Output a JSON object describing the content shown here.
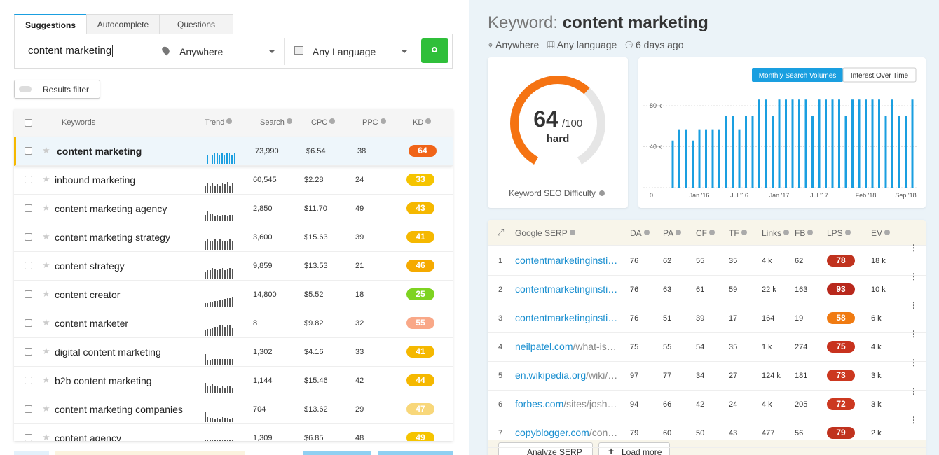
{
  "tabs": [
    "Suggestions",
    "Autocomplete",
    "Questions"
  ],
  "search": {
    "query": "content marketing",
    "location": "Anywhere",
    "language": "Any Language"
  },
  "results_filter": "Results filter",
  "keywords": {
    "headers": [
      "Keywords",
      "Trend",
      "Search",
      "CPC",
      "PPC",
      "KD"
    ],
    "rows": [
      {
        "keyword": "content marketing",
        "search": "73,990",
        "cpc": "$6.54",
        "ppc": "38",
        "kd": "64",
        "kd_color": "#f06418",
        "trend": [
          9,
          10,
          9,
          10,
          10,
          9,
          10,
          9,
          10,
          10,
          9,
          10
        ]
      },
      {
        "keyword": "inbound marketing",
        "search": "60,545",
        "cpc": "$2.28",
        "ppc": "24",
        "kd": "33",
        "kd_color": "#f5c400",
        "trend": [
          7,
          9,
          6,
          9,
          7,
          8,
          6,
          9,
          8,
          10,
          7,
          9
        ]
      },
      {
        "keyword": "content marketing agency",
        "search": "2,850",
        "cpc": "$11.70",
        "ppc": "49",
        "kd": "43",
        "kd_color": "#f5b800",
        "trend": [
          6,
          10,
          7,
          7,
          5,
          6,
          5,
          6,
          6,
          5,
          6,
          6
        ]
      },
      {
        "keyword": "content marketing strategy",
        "search": "3,600",
        "cpc": "$15.63",
        "ppc": "39",
        "kd": "41",
        "kd_color": "#f5b800",
        "trend": [
          8,
          9,
          8,
          8,
          9,
          8,
          9,
          8,
          8,
          8,
          9,
          8
        ]
      },
      {
        "keyword": "content strategy",
        "search": "9,859",
        "cpc": "$13.53",
        "ppc": "21",
        "kd": "46",
        "kd_color": "#f5aa00",
        "trend": [
          7,
          8,
          8,
          10,
          9,
          8,
          9,
          10,
          8,
          9,
          10,
          9
        ]
      },
      {
        "keyword": "content creator",
        "search": "14,800",
        "cpc": "$5.52",
        "ppc": "18",
        "kd": "25",
        "kd_color": "#7ed321",
        "trend": [
          4,
          4,
          5,
          5,
          6,
          6,
          7,
          7,
          8,
          9,
          9,
          10
        ]
      },
      {
        "keyword": "content marketer",
        "search": "8",
        "cpc": "$9.82",
        "ppc": "32",
        "kd": "55",
        "kd_color": "#f9a888",
        "trend": [
          5,
          6,
          6,
          7,
          8,
          8,
          9,
          9,
          8,
          9,
          9,
          7
        ]
      },
      {
        "keyword": "digital content marketing",
        "search": "1,302",
        "cpc": "$4.16",
        "ppc": "33",
        "kd": "41",
        "kd_color": "#f5b800",
        "trend": [
          9,
          4,
          4,
          5,
          5,
          5,
          5,
          5,
          5,
          5,
          5,
          5
        ]
      },
      {
        "keyword": "b2b content marketing",
        "search": "1,144",
        "cpc": "$15.46",
        "ppc": "42",
        "kd": "44",
        "kd_color": "#f5b800",
        "trend": [
          9,
          6,
          6,
          8,
          6,
          6,
          5,
          6,
          5,
          6,
          6,
          5
        ]
      },
      {
        "keyword": "content marketing companies",
        "search": "704",
        "cpc": "$13.62",
        "ppc": "29",
        "kd": "47",
        "kd_color": "#f8d77a",
        "trend": [
          10,
          5,
          4,
          4,
          3,
          4,
          3,
          5,
          4,
          4,
          3,
          4
        ]
      },
      {
        "keyword": "content agency",
        "search": "1,309",
        "cpc": "$6.85",
        "ppc": "48",
        "kd": "49",
        "kd_color": "#f5c400",
        "trend": [
          7,
          7,
          7,
          7,
          7,
          7,
          7,
          7,
          7,
          7,
          7,
          7
        ]
      }
    ]
  },
  "keyword_title": {
    "prefix": "Keyword:",
    "keyword": "content marketing"
  },
  "meta": {
    "location": "Anywhere",
    "language": "Any language",
    "updated": "6 days ago"
  },
  "difficulty": {
    "value": 64,
    "max": "/100",
    "label": "hard",
    "caption": "Keyword SEO Difficulty"
  },
  "volume_chart": {
    "tabs": [
      "Monthly Search Volumes",
      "Interest Over Time"
    ],
    "ylim": [
      0,
      90000
    ],
    "yticks": [
      {
        "value": 0,
        "label": "0"
      },
      {
        "value": 40000,
        "label": "40 k"
      },
      {
        "value": 80000,
        "label": "80 k"
      }
    ],
    "categories": [
      null,
      null,
      null,
      null,
      "Jan '16",
      null,
      null,
      null,
      null,
      null,
      "Jul '16",
      null,
      null,
      null,
      null,
      null,
      "Jan '17",
      null,
      null,
      null,
      null,
      null,
      "Jul '17",
      null,
      null,
      null,
      null,
      null,
      null,
      "Feb '18",
      null,
      null,
      null,
      null,
      null,
      "Sep '18",
      null
    ],
    "values": [
      46000,
      57000,
      57000,
      46000,
      57000,
      57000,
      57000,
      57000,
      70000,
      70000,
      57000,
      70000,
      70000,
      86000,
      86000,
      70000,
      86000,
      86000,
      86000,
      86000,
      86000,
      70000,
      86000,
      86000,
      86000,
      86000,
      70000,
      86000,
      86000,
      86000,
      86000,
      86000,
      70000,
      86000,
      70000,
      70000,
      86000
    ],
    "color": "#1a9fe0"
  },
  "serp": {
    "headers": [
      "Google SERP",
      "DA",
      "PA",
      "CF",
      "TF",
      "Links",
      "FB",
      "LPS",
      "EV"
    ],
    "rows": [
      {
        "rank": "1",
        "domain": "contentmarketinginsti…",
        "da": "76",
        "pa": "62",
        "cf": "55",
        "tf": "35",
        "links": "4 k",
        "fb": "62",
        "lps": "78",
        "lps_color": "#c0321e",
        "ev": "18 k"
      },
      {
        "rank": "2",
        "domain": "contentmarketinginsti…",
        "da": "76",
        "pa": "63",
        "cf": "61",
        "tf": "59",
        "links": "22 k",
        "fb": "163",
        "lps": "93",
        "lps_color": "#b8281c",
        "ev": "10 k"
      },
      {
        "rank": "3",
        "domain": "contentmarketinginsti…",
        "da": "76",
        "pa": "51",
        "cf": "39",
        "tf": "17",
        "links": "164",
        "fb": "19",
        "lps": "58",
        "lps_color": "#f07b12",
        "ev": "6 k"
      },
      {
        "rank": "4",
        "domain": "neilpatel.com",
        "path": "/what-is…",
        "da": "75",
        "pa": "55",
        "cf": "54",
        "tf": "35",
        "links": "1 k",
        "fb": "274",
        "lps": "75",
        "lps_color": "#c8321e",
        "ev": "4 k"
      },
      {
        "rank": "5",
        "domain": "en.wikipedia.org",
        "path": "/wiki/…",
        "da": "97",
        "pa": "77",
        "cf": "34",
        "tf": "27",
        "links": "124 k",
        "fb": "181",
        "lps": "73",
        "lps_color": "#cc3820",
        "ev": "3 k"
      },
      {
        "rank": "6",
        "domain": "forbes.com",
        "path": "/sites/josh…",
        "da": "94",
        "pa": "66",
        "cf": "42",
        "tf": "24",
        "links": "4 k",
        "fb": "205",
        "lps": "72",
        "lps_color": "#cc3820",
        "ev": "3 k"
      },
      {
        "rank": "7",
        "domain": "copyblogger.com",
        "path": "/con…",
        "da": "79",
        "pa": "60",
        "cf": "50",
        "tf": "43",
        "links": "477",
        "fb": "56",
        "lps": "79",
        "lps_color": "#c0321e",
        "ev": "2 k"
      }
    ]
  },
  "buttons": {
    "analyze": "Analyze SERP",
    "load_more": "Load more"
  }
}
